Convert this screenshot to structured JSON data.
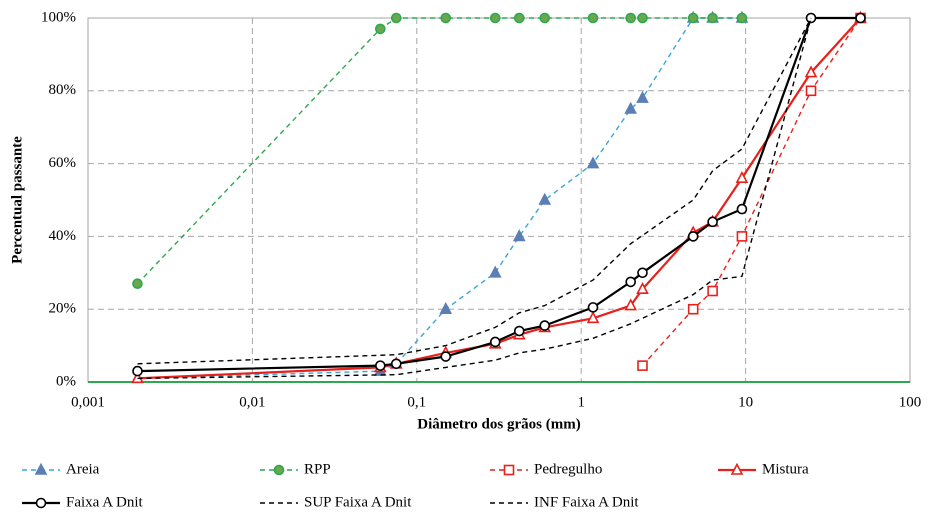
{
  "chart_data": {
    "type": "line",
    "x_label": "Diâmetro dos grãos (mm)",
    "y_label": "Percentual passante",
    "x_log": true,
    "xlim": [
      0.001,
      100
    ],
    "xticks": [
      {
        "value": 0.001,
        "label": "0,001"
      },
      {
        "value": 0.01,
        "label": "0,01"
      },
      {
        "value": 0.1,
        "label": "0,1"
      },
      1,
      10,
      100
    ],
    "ylim": [
      0,
      100
    ],
    "yticks": [
      {
        "value": 0,
        "label": "0%"
      },
      {
        "value": 20,
        "label": "20%"
      },
      {
        "value": 40,
        "label": "40%"
      },
      {
        "value": 60,
        "label": "60%"
      },
      {
        "value": 80,
        "label": "80%"
      },
      {
        "value": 100,
        "label": "100%"
      }
    ],
    "grid": true,
    "legend": "bottom",
    "series": [
      {
        "name": "Areia",
        "color": "#3aa6d8",
        "dashed": true,
        "marker": "triangle",
        "marker_fill": "#5b7fb5",
        "x": [
          0.002,
          0.06,
          0.075,
          0.15,
          0.3,
          0.42,
          0.6,
          1.18,
          2,
          2.36,
          4.8,
          6.3,
          9.5
        ],
        "values": [
          1,
          3,
          5,
          20,
          30,
          40,
          50,
          60,
          75,
          78,
          100,
          100,
          100
        ]
      },
      {
        "name": "RPP",
        "color": "#2ea84f",
        "dashed": true,
        "marker": "circle",
        "marker_fill": "#6aa84f",
        "x": [
          0.002,
          0.06,
          0.075,
          0.15,
          0.3,
          0.42,
          0.6,
          1.18,
          2,
          2.36,
          4.8,
          6.3,
          9.5
        ],
        "values": [
          27,
          97,
          100,
          100,
          100,
          100,
          100,
          100,
          100,
          100,
          100,
          100,
          100
        ]
      },
      {
        "name": "Pedregulho",
        "color": "#e8201b",
        "dashed": true,
        "marker": "square",
        "marker_fill": "#ffffff",
        "x": [
          2.36,
          4.8,
          6.3,
          9.5,
          25,
          50
        ],
        "values": [
          4.5,
          20,
          25,
          40,
          80,
          100
        ]
      },
      {
        "name": "Mistura",
        "color": "#e8201b",
        "dashed": false,
        "marker": "triangle",
        "marker_fill": "#ffffff",
        "x": [
          0.002,
          0.06,
          0.075,
          0.15,
          0.3,
          0.42,
          0.6,
          1.18,
          2,
          2.36,
          4.8,
          6.3,
          9.5,
          25,
          50
        ],
        "values": [
          1,
          4,
          5,
          8,
          10.5,
          13,
          15,
          17.5,
          21,
          25.5,
          41,
          44,
          56,
          85,
          100
        ]
      },
      {
        "name": "Faixa A Dnit",
        "color": "#000000",
        "dashed": false,
        "marker": "circle",
        "marker_fill": "#ffffff",
        "x": [
          0.002,
          0.06,
          0.075,
          0.15,
          0.3,
          0.42,
          0.6,
          1.18,
          2,
          2.36,
          4.8,
          6.3,
          9.5,
          25,
          50
        ],
        "values": [
          3,
          4.5,
          5,
          7,
          11,
          14,
          15.5,
          20.5,
          27.5,
          30,
          40,
          44,
          47.5,
          100,
          100
        ]
      },
      {
        "name": "SUP Faixa A Dnit",
        "color": "#000000",
        "dashed": true,
        "marker": "none",
        "marker_fill": "#000000",
        "x": [
          0.002,
          0.075,
          0.15,
          0.3,
          0.42,
          0.6,
          1.18,
          2,
          4.8,
          6.3,
          9.5,
          25
        ],
        "values": [
          5,
          7.5,
          10,
          15,
          19,
          21,
          28,
          38,
          50,
          58,
          64,
          100
        ]
      },
      {
        "name": "INF Faixa A Dnit",
        "color": "#000000",
        "dashed": true,
        "marker": "none",
        "marker_fill": "#000000",
        "x": [
          0.002,
          0.075,
          0.15,
          0.3,
          0.42,
          0.6,
          1.18,
          2,
          4.8,
          6.3,
          9.5,
          25
        ],
        "values": [
          1,
          2,
          4,
          6,
          8,
          9,
          12,
          16,
          24,
          28,
          29,
          100
        ]
      }
    ]
  }
}
